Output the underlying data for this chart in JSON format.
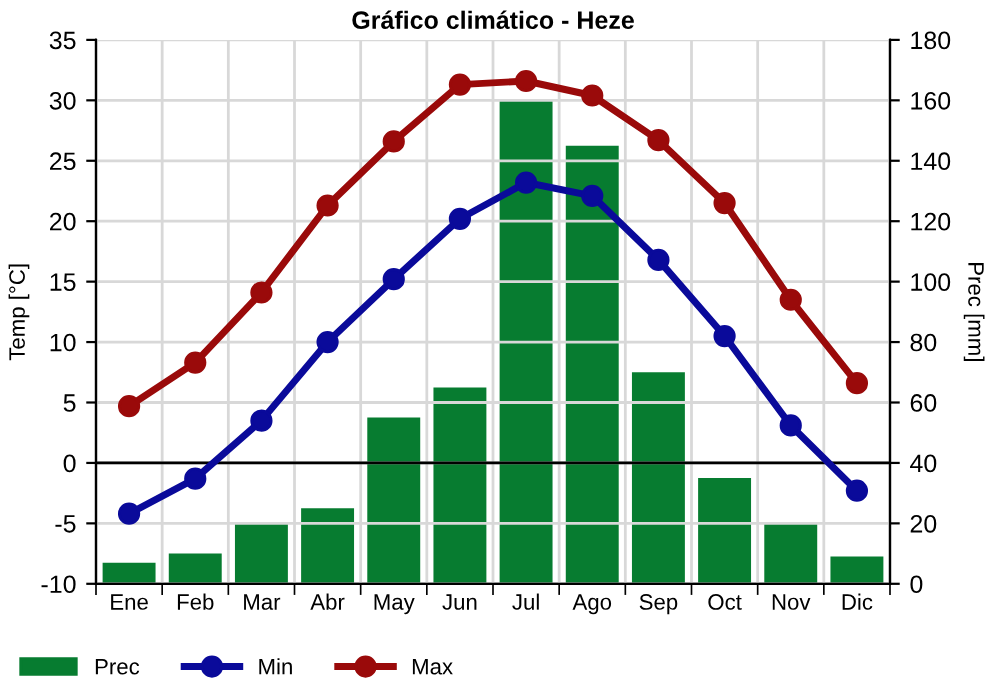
{
  "chart_data": {
    "type": "line",
    "title": "Gráfico climático - Heze",
    "ylabel": "Temp [°C]",
    "y2label": "Prec [mm]",
    "categories": [
      "Ene",
      "Feb",
      "Mar",
      "Abr",
      "May",
      "Jun",
      "Jul",
      "Ago",
      "Sep",
      "Oct",
      "Nov",
      "Dic"
    ],
    "series": [
      {
        "name": "Prec",
        "type": "bar",
        "axis": "y2",
        "color": "#077c30",
        "values": [
          7,
          10,
          20,
          25,
          55,
          65,
          160,
          145,
          70,
          35,
          20,
          9
        ]
      },
      {
        "name": "Min",
        "color": "#0a0a9a",
        "values": [
          -4.2,
          -1.3,
          3.5,
          10.0,
          15.2,
          20.2,
          23.2,
          22.1,
          16.8,
          10.5,
          3.1,
          -2.3
        ]
      },
      {
        "name": "Max",
        "color": "#9a0a0a",
        "values": [
          4.7,
          8.3,
          14.1,
          21.3,
          26.6,
          31.3,
          31.6,
          30.4,
          26.7,
          21.5,
          13.5,
          6.6
        ]
      }
    ],
    "ylim": [
      -10,
      35
    ],
    "yticks": [
      -10,
      -5,
      0,
      5,
      10,
      15,
      20,
      25,
      30,
      35
    ],
    "y2lim": [
      0,
      180
    ],
    "y2ticks": [
      0,
      20,
      40,
      60,
      80,
      100,
      120,
      140,
      160,
      180
    ],
    "ref_lines": [
      {
        "axis": "y",
        "value": 0,
        "color": "#000000"
      }
    ],
    "grid": true,
    "legend": "bottom",
    "marker": "circle",
    "line_style": "solid"
  }
}
